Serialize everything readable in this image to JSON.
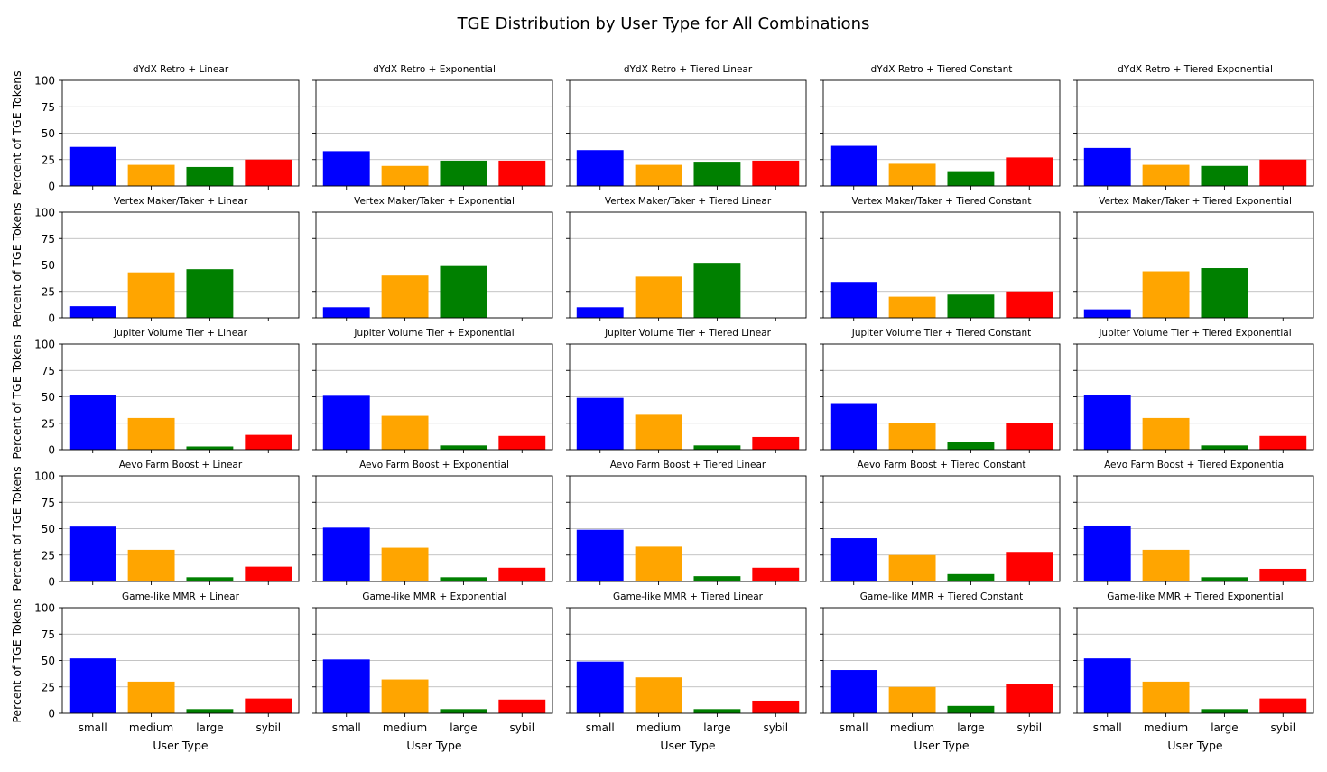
{
  "figure": {
    "title": "TGE Distribution by User Type for All Combinations"
  },
  "colors": {
    "small": "#0000ff",
    "medium": "#ffa500",
    "large": "#008000",
    "sybil": "#ff0000",
    "grid": "#b0b0b0"
  },
  "chart_data": {
    "type": "bar",
    "layout": "grid 5 rows x 5 columns",
    "categories": [
      "small",
      "medium",
      "large",
      "sybil"
    ],
    "xlabel": "User Type",
    "ylabel": "Percent of TGE Tokens",
    "ylim": [
      0,
      100
    ],
    "yticks": [
      0,
      25,
      50,
      75,
      100
    ],
    "grid": "y",
    "panels": [
      {
        "title": "dYdX Retro + Linear",
        "values": [
          37,
          20,
          18,
          25
        ]
      },
      {
        "title": "dYdX Retro + Exponential",
        "values": [
          33,
          19,
          24,
          24
        ]
      },
      {
        "title": "dYdX Retro + Tiered Linear",
        "values": [
          34,
          20,
          23,
          24
        ]
      },
      {
        "title": "dYdX Retro + Tiered Constant",
        "values": [
          38,
          21,
          14,
          27
        ]
      },
      {
        "title": "dYdX Retro + Tiered Exponential",
        "values": [
          36,
          20,
          19,
          25
        ]
      },
      {
        "title": "Vertex Maker/Taker + Linear",
        "values": [
          11,
          43,
          46,
          0
        ]
      },
      {
        "title": "Vertex Maker/Taker + Exponential",
        "values": [
          10,
          40,
          49,
          0
        ]
      },
      {
        "title": "Vertex Maker/Taker + Tiered Linear",
        "values": [
          10,
          39,
          52,
          0
        ]
      },
      {
        "title": "Vertex Maker/Taker + Tiered Constant",
        "values": [
          34,
          20,
          22,
          25
        ]
      },
      {
        "title": "Vertex Maker/Taker + Tiered Exponential",
        "values": [
          8,
          44,
          47,
          0
        ]
      },
      {
        "title": "Jupiter Volume Tier + Linear",
        "values": [
          52,
          30,
          3,
          14
        ]
      },
      {
        "title": "Jupiter Volume Tier + Exponential",
        "values": [
          51,
          32,
          4,
          13
        ]
      },
      {
        "title": "Jupiter Volume Tier + Tiered Linear",
        "values": [
          49,
          33,
          4,
          12
        ]
      },
      {
        "title": "Jupiter Volume Tier + Tiered Constant",
        "values": [
          44,
          25,
          7,
          25
        ]
      },
      {
        "title": "Jupiter Volume Tier + Tiered Exponential",
        "values": [
          52,
          30,
          4,
          13
        ]
      },
      {
        "title": "Aevo Farm Boost + Linear",
        "values": [
          52,
          30,
          4,
          14
        ]
      },
      {
        "title": "Aevo Farm Boost + Exponential",
        "values": [
          51,
          32,
          4,
          13
        ]
      },
      {
        "title": "Aevo Farm Boost + Tiered Linear",
        "values": [
          49,
          33,
          5,
          13
        ]
      },
      {
        "title": "Aevo Farm Boost + Tiered Constant",
        "values": [
          41,
          25,
          7,
          28
        ]
      },
      {
        "title": "Aevo Farm Boost + Tiered Exponential",
        "values": [
          53,
          30,
          4,
          12
        ]
      },
      {
        "title": "Game-like MMR + Linear",
        "values": [
          52,
          30,
          4,
          14
        ]
      },
      {
        "title": "Game-like MMR + Exponential",
        "values": [
          51,
          32,
          4,
          13
        ]
      },
      {
        "title": "Game-like MMR + Tiered Linear",
        "values": [
          49,
          34,
          4,
          12
        ]
      },
      {
        "title": "Game-like MMR + Tiered Constant",
        "values": [
          41,
          25,
          7,
          28
        ]
      },
      {
        "title": "Game-like MMR + Tiered Exponential",
        "values": [
          52,
          30,
          4,
          14
        ]
      }
    ]
  }
}
